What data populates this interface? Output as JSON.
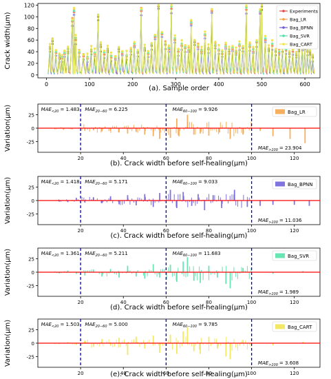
{
  "chart_data": [
    {
      "type": "line",
      "caption": "(a). Sample order",
      "ylabel": "Crack width(μm)",
      "xlim": [
        -20,
        635
      ],
      "ylim": [
        -5,
        123
      ],
      "xticks": [
        0,
        100,
        200,
        300,
        400,
        500,
        600
      ],
      "yticks": [
        0,
        20,
        40,
        60,
        80,
        100,
        120
      ],
      "legend_position": "top-right",
      "series": [
        {
          "name": "Experiments",
          "color": "#e8453c"
        },
        {
          "name": "Bag_LR",
          "color": "#f5a142"
        },
        {
          "name": "Bag_BPNN",
          "color": "#6a5cd8"
        },
        {
          "name": "Bag_SVR",
          "color": "#4fe0a6"
        },
        {
          "name": "Bag_CART",
          "color": "#f0e44a"
        }
      ],
      "peaks": [
        {
          "x": 8,
          "y": 45
        },
        {
          "x": 14,
          "y": 58
        },
        {
          "x": 22,
          "y": 38
        },
        {
          "x": 30,
          "y": 30
        },
        {
          "x": 36,
          "y": 28
        },
        {
          "x": 42,
          "y": 36
        },
        {
          "x": 50,
          "y": 40
        },
        {
          "x": 60,
          "y": 92
        },
        {
          "x": 64,
          "y": 108
        },
        {
          "x": 68,
          "y": 60
        },
        {
          "x": 76,
          "y": 38
        },
        {
          "x": 86,
          "y": 32
        },
        {
          "x": 95,
          "y": 28
        },
        {
          "x": 104,
          "y": 40
        },
        {
          "x": 112,
          "y": 36
        },
        {
          "x": 120,
          "y": 100
        },
        {
          "x": 126,
          "y": 48
        },
        {
          "x": 134,
          "y": 35
        },
        {
          "x": 142,
          "y": 42
        },
        {
          "x": 150,
          "y": 30
        },
        {
          "x": 160,
          "y": 28
        },
        {
          "x": 168,
          "y": 44
        },
        {
          "x": 176,
          "y": 36
        },
        {
          "x": 186,
          "y": 32
        },
        {
          "x": 196,
          "y": 40
        },
        {
          "x": 204,
          "y": 50
        },
        {
          "x": 212,
          "y": 38
        },
        {
          "x": 220,
          "y": 110
        },
        {
          "x": 228,
          "y": 44
        },
        {
          "x": 236,
          "y": 36
        },
        {
          "x": 244,
          "y": 50
        },
        {
          "x": 252,
          "y": 65
        },
        {
          "x": 260,
          "y": 118
        },
        {
          "x": 268,
          "y": 70
        },
        {
          "x": 276,
          "y": 52
        },
        {
          "x": 284,
          "y": 44
        },
        {
          "x": 290,
          "y": 114
        },
        {
          "x": 298,
          "y": 60
        },
        {
          "x": 306,
          "y": 40
        },
        {
          "x": 314,
          "y": 50
        },
        {
          "x": 322,
          "y": 46
        },
        {
          "x": 330,
          "y": 42
        },
        {
          "x": 336,
          "y": 88
        },
        {
          "x": 344,
          "y": 56
        },
        {
          "x": 352,
          "y": 48
        },
        {
          "x": 360,
          "y": 40
        },
        {
          "x": 368,
          "y": 68
        },
        {
          "x": 376,
          "y": 44
        },
        {
          "x": 384,
          "y": 110
        },
        {
          "x": 392,
          "y": 50
        },
        {
          "x": 400,
          "y": 42
        },
        {
          "x": 408,
          "y": 36
        },
        {
          "x": 416,
          "y": 48
        },
        {
          "x": 424,
          "y": 40
        },
        {
          "x": 432,
          "y": 44
        },
        {
          "x": 440,
          "y": 38
        },
        {
          "x": 448,
          "y": 50
        },
        {
          "x": 456,
          "y": 46
        },
        {
          "x": 464,
          "y": 112
        },
        {
          "x": 472,
          "y": 48
        },
        {
          "x": 480,
          "y": 40
        },
        {
          "x": 488,
          "y": 56
        },
        {
          "x": 496,
          "y": 108
        },
        {
          "x": 500,
          "y": 118
        },
        {
          "x": 508,
          "y": 60
        },
        {
          "x": 516,
          "y": 44
        },
        {
          "x": 524,
          "y": 50
        },
        {
          "x": 532,
          "y": 40
        },
        {
          "x": 540,
          "y": 38
        },
        {
          "x": 548,
          "y": 46
        },
        {
          "x": 556,
          "y": 42
        },
        {
          "x": 564,
          "y": 36
        },
        {
          "x": 572,
          "y": 40
        },
        {
          "x": 580,
          "y": 34
        },
        {
          "x": 586,
          "y": 44
        },
        {
          "x": 594,
          "y": 48
        },
        {
          "x": 600,
          "y": 52
        },
        {
          "x": 606,
          "y": 40
        },
        {
          "x": 612,
          "y": 38
        },
        {
          "x": 618,
          "y": 30
        }
      ]
    },
    {
      "type": "bar",
      "caption": "(b). Crack width before self-healing(μm)",
      "ylabel": "Variation(μm)",
      "xlim": [
        0,
        132
      ],
      "ylim": [
        -45,
        45
      ],
      "xticks": [
        20,
        40,
        60,
        80,
        100,
        120
      ],
      "yticks": [
        -25,
        0,
        25
      ],
      "dashed_x": [
        20,
        60,
        100
      ],
      "legend": "Bag_LR",
      "color": "#f5a142",
      "annotations": [
        {
          "sub": "<20",
          "value": "= 1.483",
          "x": 1.5,
          "pos": "top"
        },
        {
          "sub": "20−60",
          "value": "= 6.225",
          "x": 22,
          "pos": "top"
        },
        {
          "sub": "60−100",
          "value": "= 9.926",
          "x": 63,
          "pos": "top"
        },
        {
          "sub": ">100",
          "value": "= 23.904",
          "x": 103,
          "pos": "bottom"
        }
      ],
      "bars": [
        [
          8,
          -2
        ],
        [
          12,
          -3
        ],
        [
          16,
          -2
        ],
        [
          22,
          -5
        ],
        [
          26,
          -4
        ],
        [
          30,
          -6
        ],
        [
          34,
          -5
        ],
        [
          38,
          -8
        ],
        [
          42,
          -10
        ],
        [
          46,
          -7
        ],
        [
          50,
          -12
        ],
        [
          54,
          -15
        ],
        [
          57,
          -20
        ],
        [
          62,
          -18
        ],
        [
          65,
          18
        ],
        [
          66,
          -15
        ],
        [
          70,
          25
        ],
        [
          73,
          -12
        ],
        [
          76,
          -10
        ],
        [
          80,
          -14
        ],
        [
          85,
          -8
        ],
        [
          90,
          -20
        ],
        [
          96,
          -12
        ],
        [
          104,
          -5
        ],
        [
          110,
          -15
        ],
        [
          118,
          -20
        ],
        [
          125,
          -28
        ]
      ]
    },
    {
      "type": "bar",
      "caption": "(c). Crack width before self-healing(μm)",
      "ylabel": "Variation(μm)",
      "xlim": [
        0,
        132
      ],
      "ylim": [
        -45,
        45
      ],
      "xticks": [
        20,
        40,
        60,
        80,
        100,
        120
      ],
      "yticks": [
        -25,
        0,
        25
      ],
      "dashed_x": [
        20,
        60,
        100
      ],
      "legend": "Bag_BPNN",
      "color": "#6a5cd8",
      "annotations": [
        {
          "sub": "<20",
          "value": "= 1.418",
          "x": 1.5,
          "pos": "top"
        },
        {
          "sub": "20−60",
          "value": "= 5.171",
          "x": 22,
          "pos": "top"
        },
        {
          "sub": "60−100",
          "value": "= 9.033",
          "x": 63,
          "pos": "top"
        },
        {
          "sub": ">100",
          "value": "= 11.036",
          "x": 103,
          "pos": "bottom"
        }
      ],
      "bars": [
        [
          10,
          -2
        ],
        [
          14,
          -3
        ],
        [
          18,
          5
        ],
        [
          22,
          -4
        ],
        [
          26,
          6
        ],
        [
          30,
          -5
        ],
        [
          34,
          8
        ],
        [
          38,
          -7
        ],
        [
          42,
          10
        ],
        [
          46,
          -9
        ],
        [
          50,
          12
        ],
        [
          54,
          -12
        ],
        [
          57,
          14
        ],
        [
          62,
          20
        ],
        [
          65,
          -14
        ],
        [
          68,
          16
        ],
        [
          72,
          -10
        ],
        [
          75,
          12
        ],
        [
          78,
          -18
        ],
        [
          82,
          10
        ],
        [
          86,
          -14
        ],
        [
          92,
          20
        ],
        [
          98,
          -12
        ],
        [
          104,
          -10
        ],
        [
          110,
          -8
        ],
        [
          120,
          -8
        ],
        [
          127,
          -10
        ]
      ]
    },
    {
      "type": "bar",
      "caption": "(d). Crack width before self-healing(μm)",
      "ylabel": "Variation(μm)",
      "xlim": [
        0,
        132
      ],
      "ylim": [
        -45,
        45
      ],
      "xticks": [
        20,
        40,
        60,
        80,
        100,
        120
      ],
      "yticks": [
        -25,
        0,
        25
      ],
      "dashed_x": [
        20,
        60,
        100
      ],
      "legend": "Bag_SVR",
      "color": "#4fe0a6",
      "annotations": [
        {
          "sub": "<20",
          "value": "= 1.361",
          "x": 1.5,
          "pos": "top"
        },
        {
          "sub": "20−60",
          "value": "= 5.211",
          "x": 22,
          "pos": "top"
        },
        {
          "sub": "60−100",
          "value": "= 11.683",
          "x": 63,
          "pos": "top"
        },
        {
          "sub": ">100",
          "value": "= 1.989",
          "x": 103,
          "pos": "bottom"
        }
      ],
      "bars": [
        [
          10,
          -2
        ],
        [
          14,
          3
        ],
        [
          18,
          -3
        ],
        [
          22,
          -6
        ],
        [
          26,
          5
        ],
        [
          30,
          -8
        ],
        [
          34,
          6
        ],
        [
          38,
          -10
        ],
        [
          42,
          12
        ],
        [
          46,
          -8
        ],
        [
          50,
          -12
        ],
        [
          54,
          15
        ],
        [
          57,
          -10
        ],
        [
          62,
          14
        ],
        [
          65,
          -18
        ],
        [
          68,
          20
        ],
        [
          70,
          28
        ],
        [
          73,
          -16
        ],
        [
          76,
          -20
        ],
        [
          80,
          12
        ],
        [
          84,
          -10
        ],
        [
          88,
          -22
        ],
        [
          90,
          -30
        ],
        [
          96,
          8
        ],
        [
          110,
          -3
        ],
        [
          124,
          2
        ]
      ]
    },
    {
      "type": "bar",
      "caption": "(e). Crack width before self-healing(μm)",
      "ylabel": "Variation(μm)",
      "xlim": [
        0,
        132
      ],
      "ylim": [
        -45,
        45
      ],
      "xticks": [
        20,
        40,
        60,
        80,
        100,
        120
      ],
      "yticks": [
        -25,
        0,
        25
      ],
      "dashed_x": [
        20,
        60,
        100
      ],
      "legend": "Bag_CART",
      "color": "#f0e44a",
      "annotations": [
        {
          "sub": "<20",
          "value": "= 1.503",
          "x": 1.5,
          "pos": "top"
        },
        {
          "sub": "20−60",
          "value": "= 5.000",
          "x": 22,
          "pos": "top"
        },
        {
          "sub": "60−100",
          "value": "= 9.785",
          "x": 63,
          "pos": "top"
        },
        {
          "sub": ">100",
          "value": "= 3.608",
          "x": 103,
          "pos": "bottom"
        }
      ],
      "bars": [
        [
          10,
          -2
        ],
        [
          14,
          2
        ],
        [
          18,
          -3
        ],
        [
          22,
          5
        ],
        [
          26,
          -6
        ],
        [
          30,
          8
        ],
        [
          34,
          -5
        ],
        [
          38,
          10
        ],
        [
          42,
          -22
        ],
        [
          46,
          12
        ],
        [
          50,
          -10
        ],
        [
          54,
          14
        ],
        [
          57,
          -18
        ],
        [
          62,
          16
        ],
        [
          65,
          -20
        ],
        [
          68,
          22
        ],
        [
          70,
          30
        ],
        [
          73,
          -15
        ],
        [
          76,
          -20
        ],
        [
          80,
          12
        ],
        [
          84,
          -10
        ],
        [
          88,
          -25
        ],
        [
          90,
          -30
        ],
        [
          96,
          6
        ],
        [
          110,
          -4
        ],
        [
          124,
          3
        ]
      ]
    }
  ]
}
